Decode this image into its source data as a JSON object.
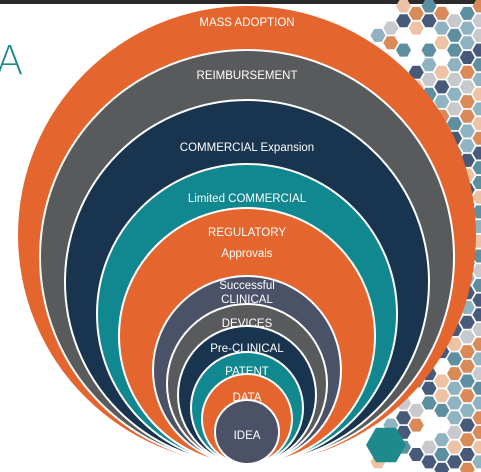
{
  "title_fragment": "A",
  "stages": [
    {
      "label": [
        "MASS ADOPTION"
      ],
      "color": "#e4652d"
    },
    {
      "label": [
        "REIMBURSEMENT"
      ],
      "color": "#595a5c"
    },
    {
      "label": [
        "COMMERCIAL Expansion"
      ],
      "color": "#18344f"
    },
    {
      "label": [
        "Limited COMMERCIAL"
      ],
      "color": "#11878f"
    },
    {
      "label": [
        "REGULATORY",
        "Approvals"
      ],
      "color": "#e4652d"
    },
    {
      "label": [
        "Successful",
        "CLINICAL"
      ],
      "color": "#4b5167"
    },
    {
      "label": [
        "DEVICES"
      ],
      "color": "#595a5c"
    },
    {
      "label": [
        "Pre-CLINICAL"
      ],
      "color": "#18344f"
    },
    {
      "label": [
        "PATENT"
      ],
      "color": "#11878f"
    },
    {
      "label": [
        "DATA"
      ],
      "color": "#e4652d"
    },
    {
      "label": [
        "IDEA"
      ],
      "color": "#4b5167"
    }
  ],
  "ring_gap_color": "#ffffff",
  "hex_palette": [
    "#5e8fa0",
    "#8fb3c0",
    "#475a7a",
    "#c8c9cc",
    "#d98a58",
    "#eec2a5",
    "#1e8a8c"
  ]
}
